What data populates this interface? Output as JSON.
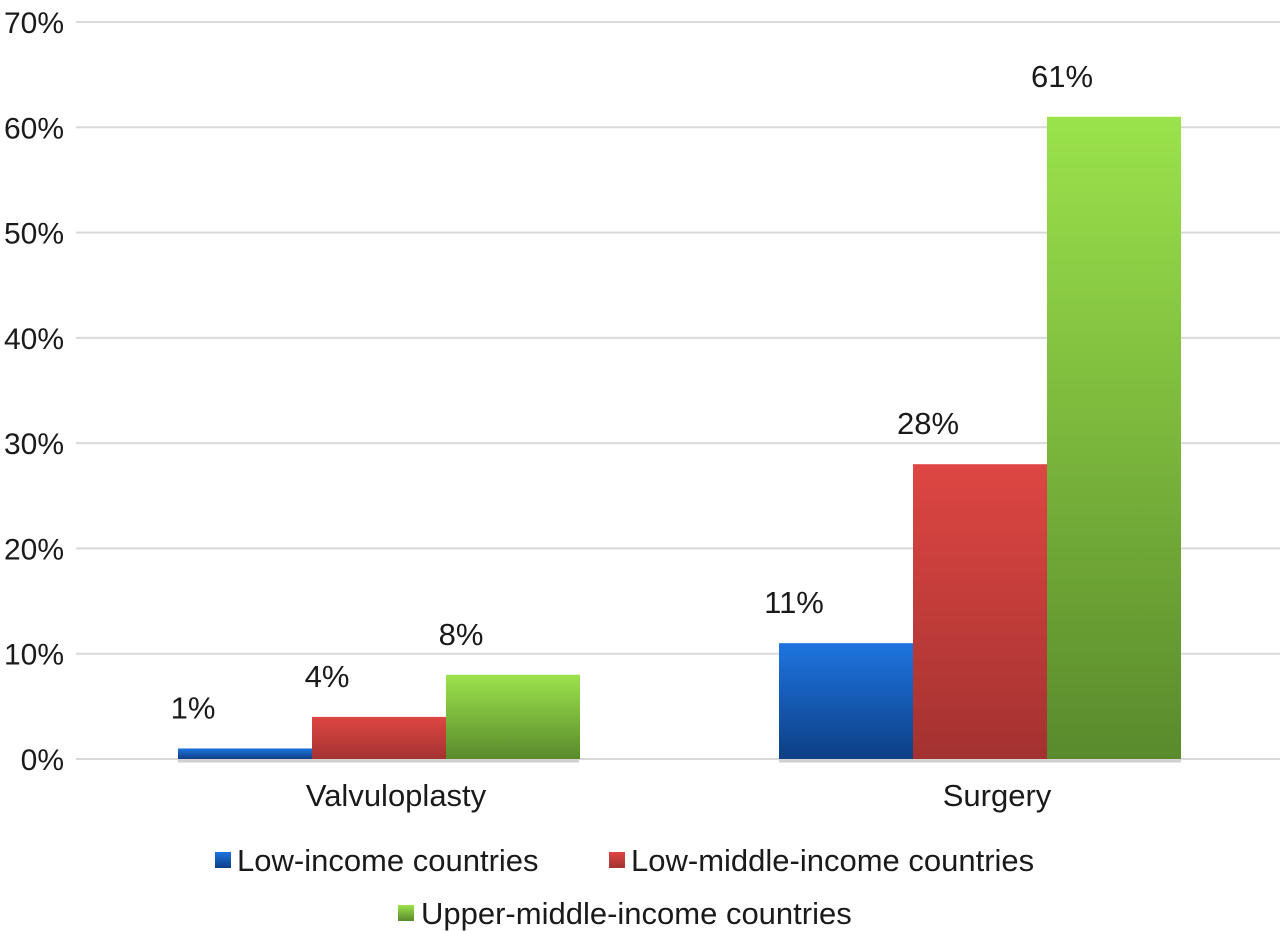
{
  "chart_data": {
    "type": "bar",
    "categories": [
      "Valvuloplasty",
      "Surgery"
    ],
    "series": [
      {
        "name": "Low-income countries",
        "values": [
          1,
          11
        ],
        "labels": [
          "1%",
          "11%"
        ],
        "color": "#1565C0",
        "color_light": "#1E74E0",
        "color_dark": "#0D3F85"
      },
      {
        "name": "Low-middle-income countries",
        "values": [
          4,
          28
        ],
        "labels": [
          "4%",
          "28%"
        ],
        "color": "#C53B39",
        "color_light": "#DE4643",
        "color_dark": "#A33230"
      },
      {
        "name": "Upper-middle-income countries",
        "values": [
          8,
          61
        ],
        "labels": [
          "8%",
          "61%"
        ],
        "color": "#7DBB3A",
        "color_light": "#9BE34C",
        "color_dark": "#5A8A2C"
      }
    ],
    "ylim": [
      0,
      70
    ],
    "yticks": [
      0,
      10,
      20,
      30,
      40,
      50,
      60,
      70
    ],
    "ytick_labels": [
      "0%",
      "10%",
      "20%",
      "30%",
      "40%",
      "50%",
      "60%",
      "70%"
    ],
    "grid": true,
    "legend_position": "bottom",
    "title": "",
    "xlabel": "",
    "ylabel": ""
  }
}
